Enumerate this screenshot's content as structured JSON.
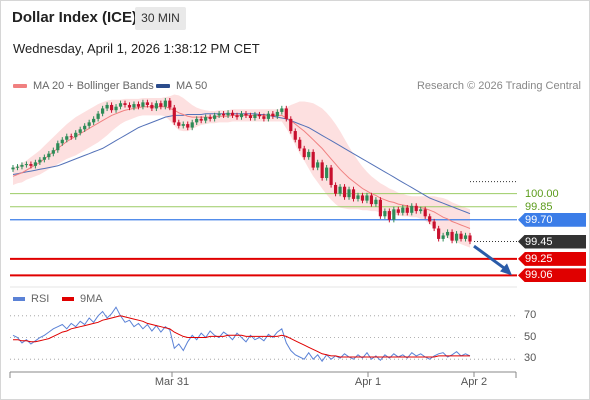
{
  "header": {
    "title": "Dollar Index (ICE)",
    "timeframe": "30 MIN",
    "datetime": "Wednesday, April 1, 2026 1:38:12 PM CET"
  },
  "legend": {
    "bollinger_label": "MA 20 + Bollinger Bands",
    "ma50_label": "MA 50",
    "credit": "Research © 2026 Trading Central"
  },
  "colors": {
    "bollinger": "#f08080",
    "band_fill": "#fde0e0",
    "ma50": "#5472b8",
    "up": "#2e8b57",
    "down": "#c8102e",
    "support": "#e00000",
    "pivot": "#3b7de8",
    "resistance": "#9ccc65",
    "rsi": "#5b82d6",
    "rsi_ma": "#e00000"
  },
  "rsi_legend": {
    "rsi_label": "RSI",
    "ma_label": "9MA"
  },
  "chart_data": {
    "type": "candlestick",
    "y_range": [
      98.95,
      101.1
    ],
    "levels": [
      {
        "value": 100.0,
        "label": "100.00",
        "kind": "resistance"
      },
      {
        "value": 99.85,
        "label": "99.85",
        "kind": "resistance"
      },
      {
        "value": 99.7,
        "label": "99.70",
        "kind": "pivot"
      },
      {
        "value": 99.45,
        "label": "99.45",
        "kind": "last"
      },
      {
        "value": 99.25,
        "label": "99.25",
        "kind": "support"
      },
      {
        "value": 99.06,
        "label": "99.06",
        "kind": "support"
      }
    ],
    "x_labels": [
      "Mar 31",
      "Apr 1",
      "Apr 2"
    ],
    "closes": [
      100.3,
      100.31,
      100.33,
      100.34,
      100.32,
      100.36,
      100.39,
      100.42,
      100.46,
      100.5,
      100.58,
      100.62,
      100.66,
      100.65,
      100.7,
      100.74,
      100.78,
      100.82,
      100.86,
      100.92,
      100.98,
      101.02,
      100.96,
      101.0,
      101.04,
      101.02,
      100.99,
      101.03,
      101.0,
      101.05,
      101.02,
      100.98,
      101.04,
      101.0,
      101.07,
      100.99,
      100.82,
      100.78,
      100.8,
      100.76,
      100.82,
      100.86,
      100.84,
      100.88,
      100.86,
      100.9,
      100.92,
      100.9,
      100.93,
      100.9,
      100.88,
      100.92,
      100.9,
      100.87,
      100.91,
      100.89,
      100.86,
      100.92,
      100.89,
      100.94,
      100.98,
      100.86,
      100.72,
      100.62,
      100.52,
      100.42,
      100.48,
      100.3,
      100.36,
      100.18,
      100.3,
      100.1,
      100.0,
      100.08,
      99.96,
      100.05,
      99.94,
      99.98,
      99.92,
      99.98,
      99.88,
      99.93,
      99.74,
      99.8,
      99.7,
      99.82,
      99.78,
      99.84,
      99.78,
      99.86,
      99.8,
      99.82,
      99.74,
      99.68,
      99.6,
      99.48,
      99.52,
      99.56,
      99.46,
      99.54,
      99.48,
      99.52,
      99.45
    ],
    "ma20": [
      100.2,
      100.22,
      100.24,
      100.27,
      100.3,
      100.33,
      100.36,
      100.4,
      100.44,
      100.48,
      100.52,
      100.56,
      100.6,
      100.63,
      100.66,
      100.69,
      100.72,
      100.75,
      100.78,
      100.81,
      100.84,
      100.87,
      100.9,
      100.92,
      100.94,
      100.96,
      100.97,
      100.98,
      100.99,
      101.0,
      101.0,
      101.0,
      101.0,
      101.0,
      101.0,
      100.98,
      100.96,
      100.93,
      100.91,
      100.89,
      100.88,
      100.88,
      100.88,
      100.88,
      100.88,
      100.88,
      100.89,
      100.89,
      100.89,
      100.9,
      100.9,
      100.9,
      100.9,
      100.9,
      100.9,
      100.9,
      100.9,
      100.9,
      100.9,
      100.9,
      100.9,
      100.87,
      100.84,
      100.8,
      100.76,
      100.72,
      100.67,
      100.62,
      100.57,
      100.52,
      100.46,
      100.4,
      100.34,
      100.28,
      100.23,
      100.18,
      100.14,
      100.1,
      100.06,
      100.03,
      100.0,
      99.98,
      99.95,
      99.93,
      99.91,
      99.9,
      99.88,
      99.87,
      99.86,
      99.85,
      99.85,
      99.84,
      99.83,
      99.81,
      99.79,
      99.76,
      99.73,
      99.71,
      99.68,
      99.66,
      99.64,
      99.62,
      99.6
    ],
    "ma50": [
      100.22,
      100.23,
      100.24,
      100.25,
      100.26,
      100.27,
      100.28,
      100.29,
      100.3,
      100.31,
      100.32,
      100.34,
      100.36,
      100.38,
      100.4,
      100.42,
      100.44,
      100.46,
      100.48,
      100.5,
      100.52,
      100.55,
      100.58,
      100.61,
      100.64,
      100.67,
      100.7,
      100.73,
      100.76,
      100.78,
      100.8,
      100.82,
      100.84,
      100.86,
      100.88,
      100.89,
      100.9,
      100.9,
      100.9,
      100.91,
      100.91,
      100.91,
      100.91,
      100.92,
      100.92,
      100.92,
      100.92,
      100.92,
      100.92,
      100.92,
      100.92,
      100.92,
      100.92,
      100.92,
      100.92,
      100.91,
      100.91,
      100.9,
      100.89,
      100.88,
      100.87,
      100.86,
      100.84,
      100.82,
      100.8,
      100.78,
      100.76,
      100.73,
      100.7,
      100.67,
      100.64,
      100.61,
      100.58,
      100.55,
      100.52,
      100.49,
      100.46,
      100.43,
      100.4,
      100.37,
      100.34,
      100.31,
      100.28,
      100.25,
      100.22,
      100.19,
      100.16,
      100.13,
      100.1,
      100.07,
      100.04,
      100.01,
      99.98,
      99.95,
      99.93,
      99.91,
      99.89,
      99.87,
      99.85,
      99.83,
      99.81,
      99.79,
      99.77
    ],
    "bb_width": [
      0.1,
      0.1,
      0.11,
      0.11,
      0.12,
      0.13,
      0.14,
      0.15,
      0.16,
      0.17,
      0.18,
      0.19,
      0.2,
      0.21,
      0.22,
      0.22,
      0.22,
      0.22,
      0.22,
      0.22,
      0.21,
      0.2,
      0.18,
      0.16,
      0.14,
      0.13,
      0.12,
      0.11,
      0.1,
      0.1,
      0.1,
      0.1,
      0.1,
      0.1,
      0.11,
      0.14,
      0.18,
      0.2,
      0.19,
      0.17,
      0.14,
      0.11,
      0.09,
      0.08,
      0.07,
      0.07,
      0.07,
      0.07,
      0.07,
      0.07,
      0.07,
      0.07,
      0.07,
      0.07,
      0.07,
      0.07,
      0.07,
      0.07,
      0.07,
      0.07,
      0.07,
      0.12,
      0.18,
      0.24,
      0.3,
      0.34,
      0.38,
      0.42,
      0.44,
      0.46,
      0.47,
      0.47,
      0.46,
      0.44,
      0.4,
      0.36,
      0.32,
      0.28,
      0.25,
      0.22,
      0.2,
      0.18,
      0.17,
      0.16,
      0.15,
      0.14,
      0.13,
      0.13,
      0.12,
      0.12,
      0.12,
      0.13,
      0.14,
      0.16,
      0.18,
      0.2,
      0.22,
      0.22,
      0.22,
      0.22,
      0.22,
      0.22,
      0.22
    ],
    "rsi": {
      "ticks": [
        70,
        50,
        30
      ],
      "y_range": [
        20,
        80
      ],
      "rsi": [
        52,
        50,
        45,
        48,
        44,
        47,
        50,
        52,
        55,
        58,
        60,
        62,
        58,
        63,
        60,
        65,
        62,
        68,
        64,
        70,
        74,
        68,
        72,
        78,
        70,
        64,
        66,
        60,
        63,
        58,
        62,
        56,
        61,
        55,
        60,
        57,
        40,
        44,
        38,
        46,
        52,
        48,
        54,
        50,
        56,
        52,
        50,
        55,
        52,
        48,
        54,
        50,
        46,
        52,
        48,
        50,
        47,
        53,
        50,
        55,
        58,
        45,
        38,
        34,
        32,
        30,
        36,
        30,
        34,
        28,
        34,
        30,
        33,
        31,
        35,
        32,
        30,
        34,
        31,
        36,
        30,
        33,
        29,
        34,
        31,
        35,
        32,
        34,
        31,
        36,
        33,
        35,
        32,
        30,
        33,
        35,
        36,
        32,
        34,
        37,
        33,
        35,
        33
      ],
      "ma": [
        48,
        48,
        47,
        47,
        46,
        46,
        47,
        48,
        49,
        51,
        53,
        55,
        56,
        58,
        59,
        60,
        61,
        62,
        63,
        64,
        66,
        67,
        68,
        69,
        70,
        69,
        68,
        67,
        66,
        65,
        63,
        62,
        61,
        60,
        59,
        58,
        55,
        53,
        51,
        50,
        50,
        50,
        50,
        50,
        51,
        51,
        51,
        51,
        52,
        52,
        52,
        52,
        51,
        51,
        51,
        51,
        51,
        51,
        51,
        51,
        52,
        51,
        49,
        47,
        45,
        43,
        41,
        39,
        37,
        35,
        34,
        33,
        33,
        32,
        32,
        32,
        32,
        32,
        32,
        32,
        32,
        32,
        32,
        32,
        32,
        32,
        32,
        32,
        32,
        32,
        32,
        32,
        32,
        32,
        32,
        33,
        33,
        33,
        33,
        33,
        33,
        33,
        33
      ]
    },
    "projection": {
      "from": 99.42,
      "to": 99.06
    }
  }
}
